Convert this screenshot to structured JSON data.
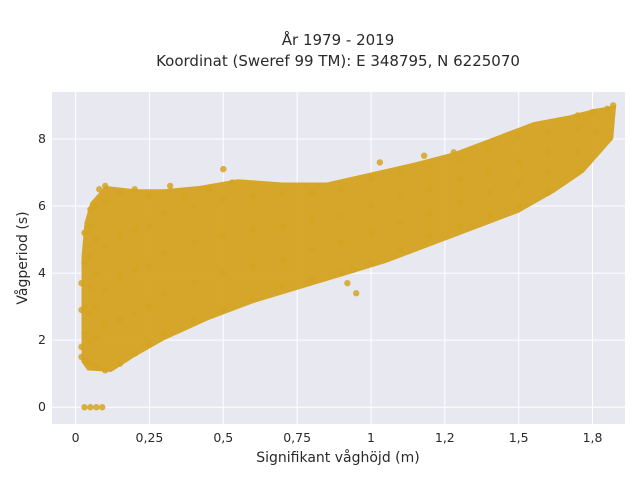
{
  "chart_data": {
    "type": "scatter",
    "title_line1": "År 1979 - 2019",
    "title_line2": "Koordinat (Sweref 99 TM): E 348795, N 6225070",
    "xlabel": "Signifikant våghöjd (m)",
    "ylabel": "Vågperiod (s)",
    "xlim": [
      -0.08,
      1.86
    ],
    "ylim": [
      -0.5,
      9.4
    ],
    "grid": true,
    "legend": "none",
    "x_ticks": [
      {
        "value": 0,
        "label": "0"
      },
      {
        "value": 0.25,
        "label": "0,25"
      },
      {
        "value": 0.5,
        "label": "0,5"
      },
      {
        "value": 0.75,
        "label": "0,75"
      },
      {
        "value": 1,
        "label": "1"
      },
      {
        "value": 1.25,
        "label": "1,2"
      },
      {
        "value": 1.5,
        "label": "1,5"
      },
      {
        "value": 1.75,
        "label": "1,8"
      }
    ],
    "y_ticks": [
      {
        "value": 0,
        "label": "0"
      },
      {
        "value": 2,
        "label": "2"
      },
      {
        "value": 4,
        "label": "4"
      },
      {
        "value": 6,
        "label": "6"
      },
      {
        "value": 8,
        "label": "8"
      }
    ],
    "point_color": "#D4A321",
    "plot_bg": "#E8E8F0",
    "grid_color": "#FFFFFF",
    "series": [
      {
        "values": [
          [
            0.02,
            1.5
          ],
          [
            0.02,
            1.8
          ],
          [
            0.02,
            2.9
          ],
          [
            0.02,
            3.7
          ],
          [
            0.03,
            0
          ],
          [
            0.05,
            0
          ],
          [
            0.07,
            0
          ],
          [
            0.09,
            0
          ],
          [
            0.03,
            1.4
          ],
          [
            0.03,
            2.2
          ],
          [
            0.03,
            3.0
          ],
          [
            0.03,
            4.3
          ],
          [
            0.03,
            5.2
          ],
          [
            0.05,
            1.3
          ],
          [
            0.05,
            2.0
          ],
          [
            0.05,
            2.8
          ],
          [
            0.05,
            3.6
          ],
          [
            0.05,
            4.5
          ],
          [
            0.05,
            5.4
          ],
          [
            0.05,
            5.9
          ],
          [
            0.07,
            1.2
          ],
          [
            0.07,
            2.1
          ],
          [
            0.07,
            3.0
          ],
          [
            0.07,
            4.0
          ],
          [
            0.07,
            5.0
          ],
          [
            0.07,
            6.0
          ],
          [
            0.08,
            6.5
          ],
          [
            0.1,
            6.6
          ],
          [
            0.1,
            1.1
          ],
          [
            0.1,
            2.5
          ],
          [
            0.1,
            3.5
          ],
          [
            0.1,
            4.8
          ],
          [
            0.1,
            6.1
          ],
          [
            0.15,
            1.3
          ],
          [
            0.15,
            2.6
          ],
          [
            0.15,
            3.9
          ],
          [
            0.15,
            5.1
          ],
          [
            0.15,
            6.4
          ],
          [
            0.2,
            1.6
          ],
          [
            0.2,
            2.8
          ],
          [
            0.2,
            4.1
          ],
          [
            0.2,
            5.3
          ],
          [
            0.2,
            6.5
          ],
          [
            0.25,
            1.9
          ],
          [
            0.25,
            3.0
          ],
          [
            0.25,
            4.2
          ],
          [
            0.25,
            5.4
          ],
          [
            0.25,
            6.3
          ],
          [
            0.32,
            6.6
          ],
          [
            0.37,
            6.3
          ],
          [
            0.45,
            6.5
          ],
          [
            0.5,
            7.1
          ],
          [
            0.53,
            6.7
          ],
          [
            0.3,
            2.2
          ],
          [
            0.3,
            3.4
          ],
          [
            0.3,
            4.6
          ],
          [
            0.3,
            5.8
          ],
          [
            0.4,
            2.6
          ],
          [
            0.4,
            3.7
          ],
          [
            0.4,
            4.9
          ],
          [
            0.4,
            6.0
          ],
          [
            0.5,
            2.9
          ],
          [
            0.5,
            4.0
          ],
          [
            0.5,
            5.1
          ],
          [
            0.5,
            6.2
          ],
          [
            0.6,
            3.2
          ],
          [
            0.6,
            4.2
          ],
          [
            0.6,
            5.3
          ],
          [
            0.6,
            6.3
          ],
          [
            0.7,
            3.6
          ],
          [
            0.7,
            4.4
          ],
          [
            0.7,
            5.4
          ],
          [
            0.7,
            6.4
          ],
          [
            0.8,
            3.8
          ],
          [
            0.8,
            4.7
          ],
          [
            0.8,
            5.6
          ],
          [
            0.8,
            6.4
          ],
          [
            0.9,
            4.0
          ],
          [
            0.9,
            4.9
          ],
          [
            0.9,
            5.7
          ],
          [
            0.9,
            6.5
          ],
          [
            0.92,
            3.7
          ],
          [
            0.94,
            4.1
          ],
          [
            0.95,
            3.4
          ],
          [
            1.0,
            4.3
          ],
          [
            1.0,
            5.2
          ],
          [
            1.0,
            6.0
          ],
          [
            1.0,
            6.8
          ],
          [
            1.1,
            4.7
          ],
          [
            1.1,
            5.5
          ],
          [
            1.1,
            6.3
          ],
          [
            1.1,
            7.0
          ],
          [
            1.03,
            7.3
          ],
          [
            1.18,
            7.5
          ],
          [
            1.28,
            7.6
          ],
          [
            1.2,
            5.1
          ],
          [
            1.2,
            5.8
          ],
          [
            1.2,
            6.5
          ],
          [
            1.2,
            7.2
          ],
          [
            1.3,
            5.4
          ],
          [
            1.3,
            6.1
          ],
          [
            1.3,
            6.8
          ],
          [
            1.3,
            7.4
          ],
          [
            1.4,
            5.7
          ],
          [
            1.4,
            6.4
          ],
          [
            1.4,
            7.0
          ],
          [
            1.4,
            7.7
          ],
          [
            1.5,
            6.0
          ],
          [
            1.5,
            6.7
          ],
          [
            1.5,
            7.3
          ],
          [
            1.5,
            8.1
          ],
          [
            1.6,
            6.4
          ],
          [
            1.6,
            7.0
          ],
          [
            1.6,
            7.6
          ],
          [
            1.6,
            8.2
          ],
          [
            1.7,
            7.0
          ],
          [
            1.7,
            7.6
          ],
          [
            1.7,
            8.3
          ],
          [
            1.7,
            8.7
          ],
          [
            1.76,
            8.2
          ],
          [
            1.8,
            8.9
          ],
          [
            1.82,
            9.0
          ],
          [
            1.75,
            8.8
          ]
        ]
      }
    ]
  }
}
